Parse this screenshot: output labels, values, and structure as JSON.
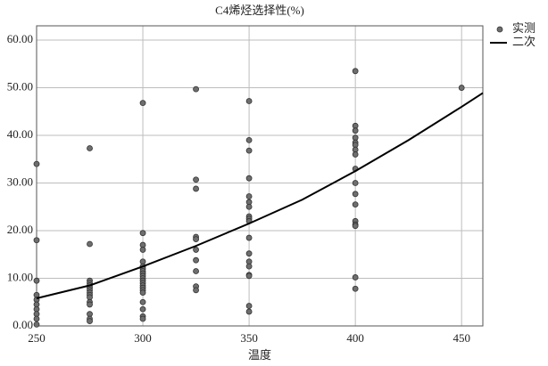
{
  "chart_data": {
    "type": "scatter",
    "title": "C4烯烃选择性(%)",
    "x_label": "温度",
    "xlim": [
      250,
      460
    ],
    "xticks": [
      250,
      300,
      350,
      400,
      450
    ],
    "ylim": [
      0,
      63
    ],
    "yticks": [
      {
        "value": 0,
        "label": "0.00"
      },
      {
        "value": 10,
        "label": "10.00"
      },
      {
        "value": 20,
        "label": "20.00"
      },
      {
        "value": 30,
        "label": "30.00"
      },
      {
        "value": 40,
        "label": "40.00"
      },
      {
        "value": 50,
        "label": "50.00"
      },
      {
        "value": 60,
        "label": "60.00"
      }
    ],
    "grid": true,
    "legend": "outside-top-right",
    "series": [
      {
        "name": "实测",
        "type": "scatter",
        "color": "#6e6e6e",
        "x": [
          250,
          250,
          250,
          250,
          250,
          250,
          250,
          250,
          250,
          250,
          275,
          275,
          275,
          275,
          275,
          275,
          275,
          275,
          275,
          275,
          275,
          275,
          275,
          275,
          275,
          300,
          300,
          300,
          300,
          300,
          300,
          300,
          300,
          300,
          300,
          300,
          300,
          300,
          300,
          300,
          300,
          300,
          300,
          300,
          300,
          300,
          325,
          325,
          325,
          325,
          325,
          325,
          325,
          325,
          325,
          325,
          350,
          350,
          350,
          350,
          350,
          350,
          350,
          350,
          350,
          350,
          350,
          350,
          350,
          350,
          350,
          350,
          350,
          350,
          400,
          400,
          400,
          400,
          400,
          400,
          400,
          400,
          400,
          400,
          400,
          400,
          400,
          400,
          400,
          400,
          400,
          450
        ],
        "values": [
          34,
          18,
          9.5,
          6.5,
          5.5,
          4.5,
          3.5,
          2.5,
          1.5,
          0.3,
          37.3,
          17.2,
          9.5,
          9,
          8.5,
          8,
          7.5,
          7,
          6.5,
          6,
          5,
          4.5,
          2.5,
          1.5,
          1,
          46.8,
          19.5,
          17,
          16,
          13.5,
          12.5,
          12,
          11.5,
          11,
          10.5,
          10,
          9.5,
          9,
          8.5,
          8,
          7.5,
          7,
          5,
          3.5,
          2,
          1.5,
          49.7,
          30.7,
          28.8,
          18.7,
          18.2,
          16,
          13.8,
          11.5,
          8.3,
          7.5,
          47.2,
          39,
          36.8,
          31,
          27.2,
          26,
          25,
          23,
          22.5,
          22,
          18.5,
          15.2,
          13.5,
          12.5,
          10.7,
          10.5,
          4.2,
          3,
          53.5,
          42,
          41,
          39.5,
          38.5,
          38,
          37,
          36,
          33,
          30,
          27.7,
          25.5,
          22,
          21.3,
          21,
          10.2,
          7.8,
          50
        ]
      },
      {
        "name": "二次",
        "type": "line",
        "color": "#000000",
        "x": [
          250,
          275,
          300,
          325,
          350,
          375,
          400,
          425,
          450,
          460
        ],
        "values": [
          5.8,
          8.5,
          12.5,
          16.8,
          21.5,
          26.5,
          32.5,
          39,
          46,
          48.9
        ]
      }
    ]
  }
}
